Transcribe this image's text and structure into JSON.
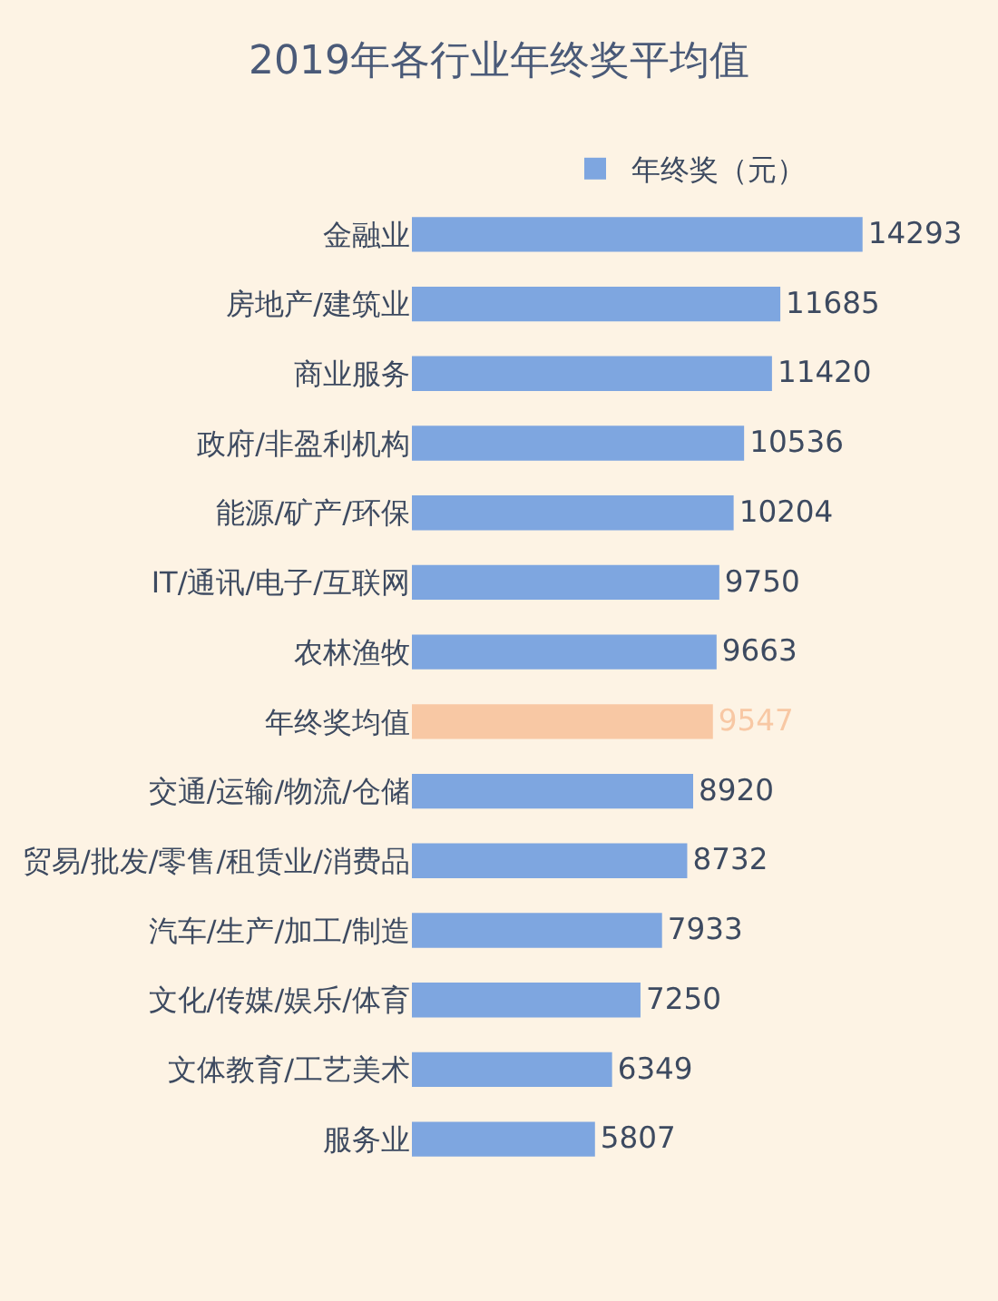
{
  "chart_data": {
    "type": "bar",
    "orientation": "horizontal",
    "title": "2019年各行业年终奖平均值",
    "categories": [
      "金融业",
      "房地产/建筑业",
      "商业服务",
      "政府/非盈利机构",
      "能源/矿产/环保",
      "IT/通讯/电子/互联网",
      "农林渔牧",
      "年终奖均值",
      "交通/运输/物流/仓储",
      "贸易/批发/零售/租赁业/消费品",
      "汽车/生产/加工/制造",
      "文化/传媒/娱乐/体育",
      "文体教育/工艺美术",
      "服务业"
    ],
    "series": [
      {
        "name": "年终奖（元）",
        "color": "#7ea6e0",
        "colors": [
          "#7ea6e0",
          "#7ea6e0",
          "#7ea6e0",
          "#7ea6e0",
          "#7ea6e0",
          "#7ea6e0",
          "#7ea6e0",
          "#f8c8a4",
          "#7ea6e0",
          "#7ea6e0",
          "#7ea6e0",
          "#7ea6e0",
          "#7ea6e0",
          "#7ea6e0"
        ],
        "values": [
          14293,
          11685,
          11420,
          10536,
          10204,
          9750,
          9663,
          9547,
          8920,
          8732,
          7933,
          7250,
          6349,
          5807
        ]
      }
    ],
    "data_labels": true,
    "legend": "top"
  }
}
